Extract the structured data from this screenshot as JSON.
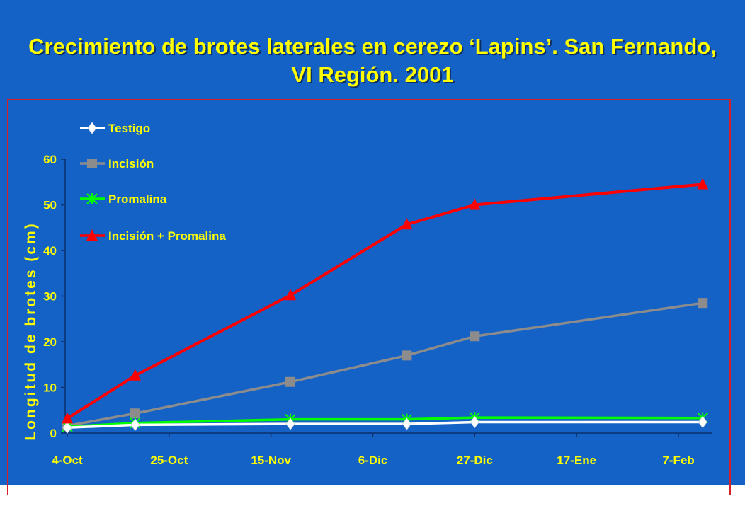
{
  "slide": {
    "title": "Crecimiento de brotes laterales en cerezo ‘Lapins’. San Fernando, VI Región. 2001",
    "background": "#1562c7",
    "title_color": "#ffff00",
    "frame_color": "#d8202a"
  },
  "chart_data": {
    "type": "line",
    "title": "",
    "ylabel": "Longitud de brotes (cm)",
    "xlabel": "",
    "x_tick_labels": [
      "4-Oct",
      "25-Oct",
      "15-Nov",
      "6-Dic",
      "27-Dic",
      "17-Ene",
      "7-Feb"
    ],
    "x_tick_days": [
      0,
      21,
      42,
      63,
      84,
      105,
      126
    ],
    "y_ticks": [
      0,
      10,
      20,
      30,
      40,
      50,
      60
    ],
    "ylim": [
      0,
      60
    ],
    "grid": false,
    "legend_position": "top-left",
    "series": [
      {
        "name": "Testigo",
        "color": "#ffffff",
        "marker": "diamond",
        "x_days": [
          0,
          14,
          46,
          70,
          84,
          131
        ],
        "values": [
          1.2,
          1.8,
          2.0,
          2.0,
          2.4,
          2.4
        ]
      },
      {
        "name": "Incisión",
        "color": "#8c8c8c",
        "marker": "square",
        "x_days": [
          0,
          14,
          46,
          70,
          84,
          131
        ],
        "values": [
          1.6,
          4.3,
          11.2,
          17.0,
          21.2,
          28.5
        ]
      },
      {
        "name": "Promalina",
        "color": "#00ff00",
        "marker": "star",
        "x_days": [
          0,
          14,
          46,
          70,
          84,
          131
        ],
        "values": [
          1.4,
          2.2,
          3.0,
          3.0,
          3.4,
          3.3
        ]
      },
      {
        "name": "Incisión + Promalina",
        "color": "#ff0000",
        "marker": "triangle",
        "x_days": [
          0,
          14,
          46,
          70,
          84,
          131
        ],
        "values": [
          3.2,
          12.6,
          30.2,
          45.7,
          50.0,
          54.5
        ]
      }
    ]
  }
}
